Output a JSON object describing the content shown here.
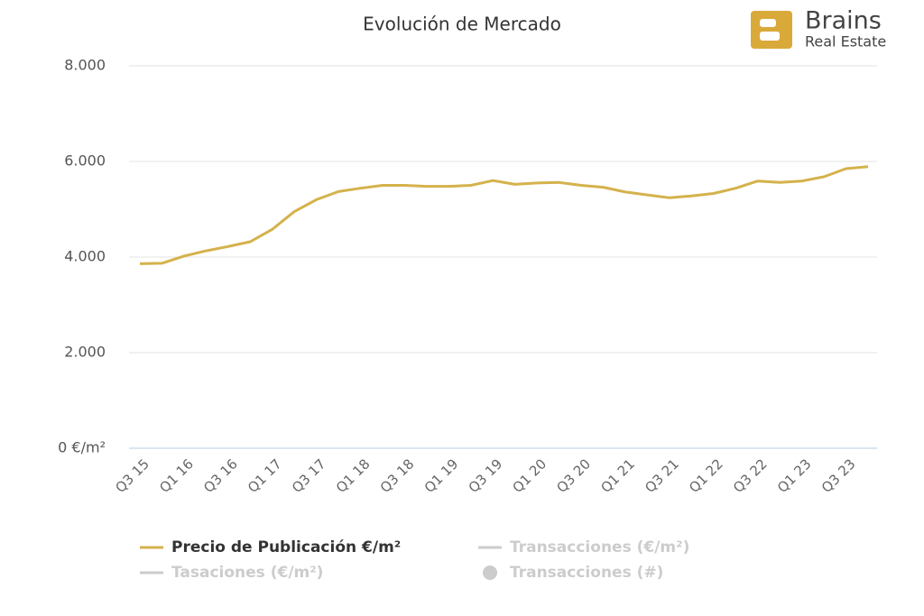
{
  "chart_data": {
    "type": "line",
    "title": "Evolución de Mercado",
    "brand": {
      "name": "Brains",
      "tagline": "Real Estate"
    },
    "categories": [
      "Q3 15",
      null,
      "Q1 16",
      null,
      "Q3 16",
      null,
      "Q1 17",
      null,
      "Q3 17",
      null,
      "Q1 18",
      null,
      "Q3 18",
      null,
      "Q1 19",
      null,
      "Q3 19",
      null,
      "Q1 20",
      null,
      "Q3 20",
      null,
      "Q1 21",
      null,
      "Q3 21",
      null,
      "Q1 22",
      null,
      "Q3 22",
      null,
      "Q1 23",
      null,
      "Q3 23",
      null
    ],
    "series": [
      {
        "name": "Precio de Publicación €/m²",
        "color": "#d4b24c",
        "values": [
          3860,
          3870,
          4020,
          4130,
          4220,
          4320,
          4580,
          4950,
          5200,
          5370,
          5440,
          5500,
          5500,
          5480,
          5480,
          5500,
          5600,
          5520,
          5550,
          5560,
          5500,
          5460,
          5360,
          5300,
          5240,
          5280,
          5330,
          5440,
          5590,
          5560,
          5590,
          5680,
          5850,
          5890
        ]
      }
    ],
    "legend": [
      {
        "name": "Precio de Publicación €/m²",
        "color": "#d4b24c",
        "marker": "line",
        "active": true
      },
      {
        "name": "Transacciones (€/m²)",
        "color": "#cccccc",
        "marker": "line",
        "active": false
      },
      {
        "name": "Tasaciones (€/m²)",
        "color": "#cccccc",
        "marker": "line",
        "active": false
      },
      {
        "name": "Transacciones (#)",
        "color": "#cccccc",
        "marker": "circle",
        "active": false
      }
    ],
    "ylim": [
      0,
      8000
    ],
    "yticks": [
      {
        "value": 0,
        "label": "0 €/m²"
      },
      {
        "value": 2000,
        "label": "2.000"
      },
      {
        "value": 4000,
        "label": "4.000"
      },
      {
        "value": 6000,
        "label": "6.000"
      },
      {
        "value": 8000,
        "label": "8.000"
      }
    ],
    "grid": true
  }
}
